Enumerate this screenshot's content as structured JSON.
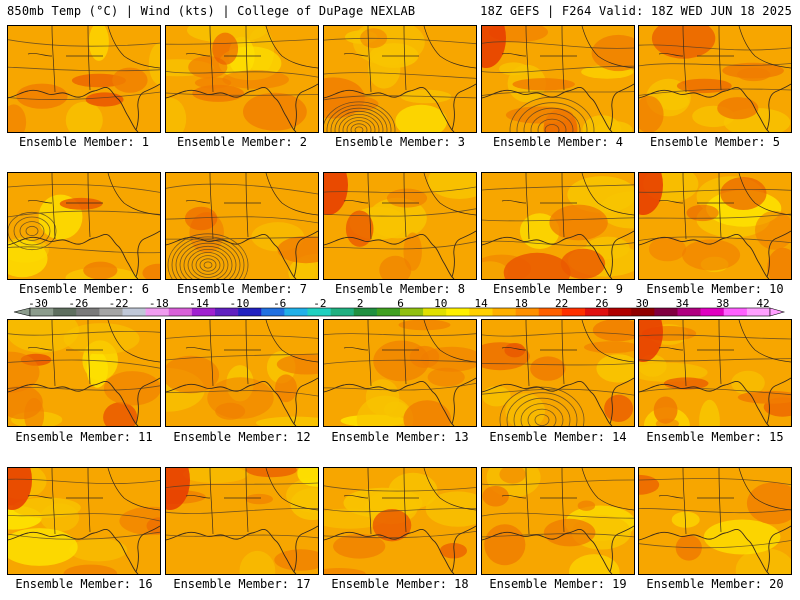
{
  "header": {
    "left_title": "850mb Temp (°C) | Wind (kts) | College of DuPage NEXLAB",
    "right_title": "18Z GEFS | F264 Valid: 18Z WED JUN 18 2025"
  },
  "colorbar": {
    "ticks": [
      "-30",
      "-26",
      "-22",
      "-18",
      "-14",
      "-10",
      "-6",
      "-2",
      "2",
      "6",
      "10",
      "14",
      "18",
      "22",
      "26",
      "30",
      "34",
      "38",
      "42"
    ],
    "colors": [
      "#8c9c8c",
      "#5f6f5f",
      "#7a7a7a",
      "#a5a5a5",
      "#c0c8d8",
      "#f09cf0",
      "#d860d8",
      "#a020d0",
      "#6020c0",
      "#2020c0",
      "#2070e0",
      "#20b0e8",
      "#20d0c0",
      "#20b080",
      "#209040",
      "#40a020",
      "#90c010",
      "#e0e000",
      "#fff000",
      "#ffd000",
      "#ffb000",
      "#ff9000",
      "#ff6000",
      "#ff3000",
      "#e01010",
      "#b00000",
      "#900000",
      "#800040",
      "#b00080",
      "#e000c0",
      "#ff60ff",
      "#ffa0ff"
    ]
  },
  "map_palette": {
    "base": "#f7a600",
    "warm": "#f07d00",
    "hot": "#ea5a00",
    "hottest": "#e63a00",
    "cool": "#f8c400",
    "coolest": "#fde000",
    "coast": "#3a2a1a"
  },
  "panels": [
    {
      "label": "Ensemble Member: 1",
      "id": 1,
      "low": null
    },
    {
      "label": "Ensemble Member: 2",
      "id": 2,
      "low": null
    },
    {
      "label": "Ensemble Member: 3",
      "id": 3,
      "low": "gulf-south"
    },
    {
      "label": "Ensemble Member: 4",
      "id": 4,
      "low": "gulf-south"
    },
    {
      "label": "Ensemble Member: 5",
      "id": 5,
      "low": null
    },
    {
      "label": "Ensemble Member: 6",
      "id": 6,
      "low": "west"
    },
    {
      "label": "Ensemble Member: 7",
      "id": 7,
      "low": "southwest"
    },
    {
      "label": "Ensemble Member: 8",
      "id": 8,
      "low": null
    },
    {
      "label": "Ensemble Member: 9",
      "id": 9,
      "low": null
    },
    {
      "label": "Ensemble Member: 10",
      "id": 10,
      "low": null
    },
    {
      "label": "Ensemble Member: 11",
      "id": 11,
      "low": null
    },
    {
      "label": "Ensemble Member: 12",
      "id": 12,
      "low": null
    },
    {
      "label": "Ensemble Member: 13",
      "id": 13,
      "low": null
    },
    {
      "label": "Ensemble Member: 14",
      "id": 14,
      "low": "gulf-south"
    },
    {
      "label": "Ensemble Member: 15",
      "id": 15,
      "low": null
    },
    {
      "label": "Ensemble Member: 16",
      "id": 16,
      "low": null
    },
    {
      "label": "Ensemble Member: 17",
      "id": 17,
      "low": null
    },
    {
      "label": "Ensemble Member: 18",
      "id": 18,
      "low": null
    },
    {
      "label": "Ensemble Member: 19",
      "id": 19,
      "low": null
    },
    {
      "label": "Ensemble Member: 20",
      "id": 20,
      "low": null
    }
  ]
}
